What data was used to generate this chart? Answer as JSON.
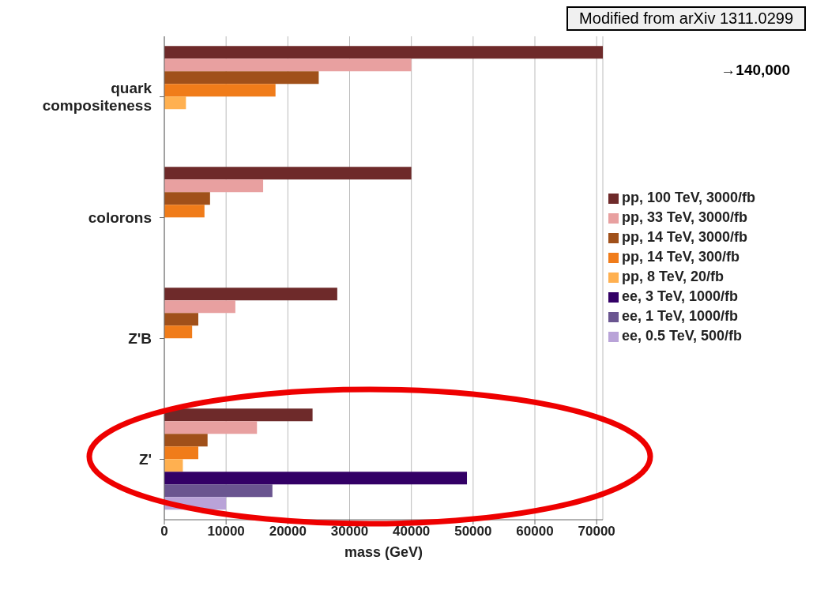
{
  "chart_data": {
    "type": "bar",
    "orientation": "horizontal",
    "xlabel": "mass (GeV)",
    "categories": [
      "quark compositeness",
      "colorons",
      "Z'B",
      "Z'"
    ],
    "series": [
      {
        "name": "pp, 100 TeV, 3000/fb",
        "color": "#6e2a2a",
        "values": [
          71000,
          40000,
          28000,
          24000
        ]
      },
      {
        "name": "pp, 33 TeV, 3000/fb",
        "color": "#e8a0a0",
        "values": [
          40000,
          16000,
          11500,
          15000
        ]
      },
      {
        "name": "pp, 14 TeV, 3000/fb",
        "color": "#a0501a",
        "values": [
          25000,
          7400,
          5500,
          7000
        ]
      },
      {
        "name": "pp, 14 TeV, 300/fb",
        "color": "#f07c1a",
        "values": [
          18000,
          6500,
          4500,
          5500
        ]
      },
      {
        "name": "pp, 8 TeV, 20/fb",
        "color": "#ffb050",
        "values": [
          3500,
          null,
          null,
          3000
        ]
      },
      {
        "name": "ee, 3 TeV, 1000/fb",
        "color": "#330066",
        "values": [
          null,
          null,
          null,
          49000
        ]
      },
      {
        "name": "ee, 1 TeV, 1000/fb",
        "color": "#6a5590",
        "values": [
          null,
          null,
          null,
          17500
        ]
      },
      {
        "name": "ee, 0.5 TeV, 500/fb",
        "color": "#b9a3d8",
        "values": [
          null,
          null,
          null,
          10000
        ]
      }
    ],
    "xlim": [
      0,
      71000
    ],
    "xticks": [
      0,
      10000,
      20000,
      30000,
      40000,
      50000,
      60000,
      70000
    ],
    "grid": "x",
    "legend": "right",
    "annotations": [
      "Modified from arXiv 1311.0299",
      "→140,000"
    ]
  }
}
